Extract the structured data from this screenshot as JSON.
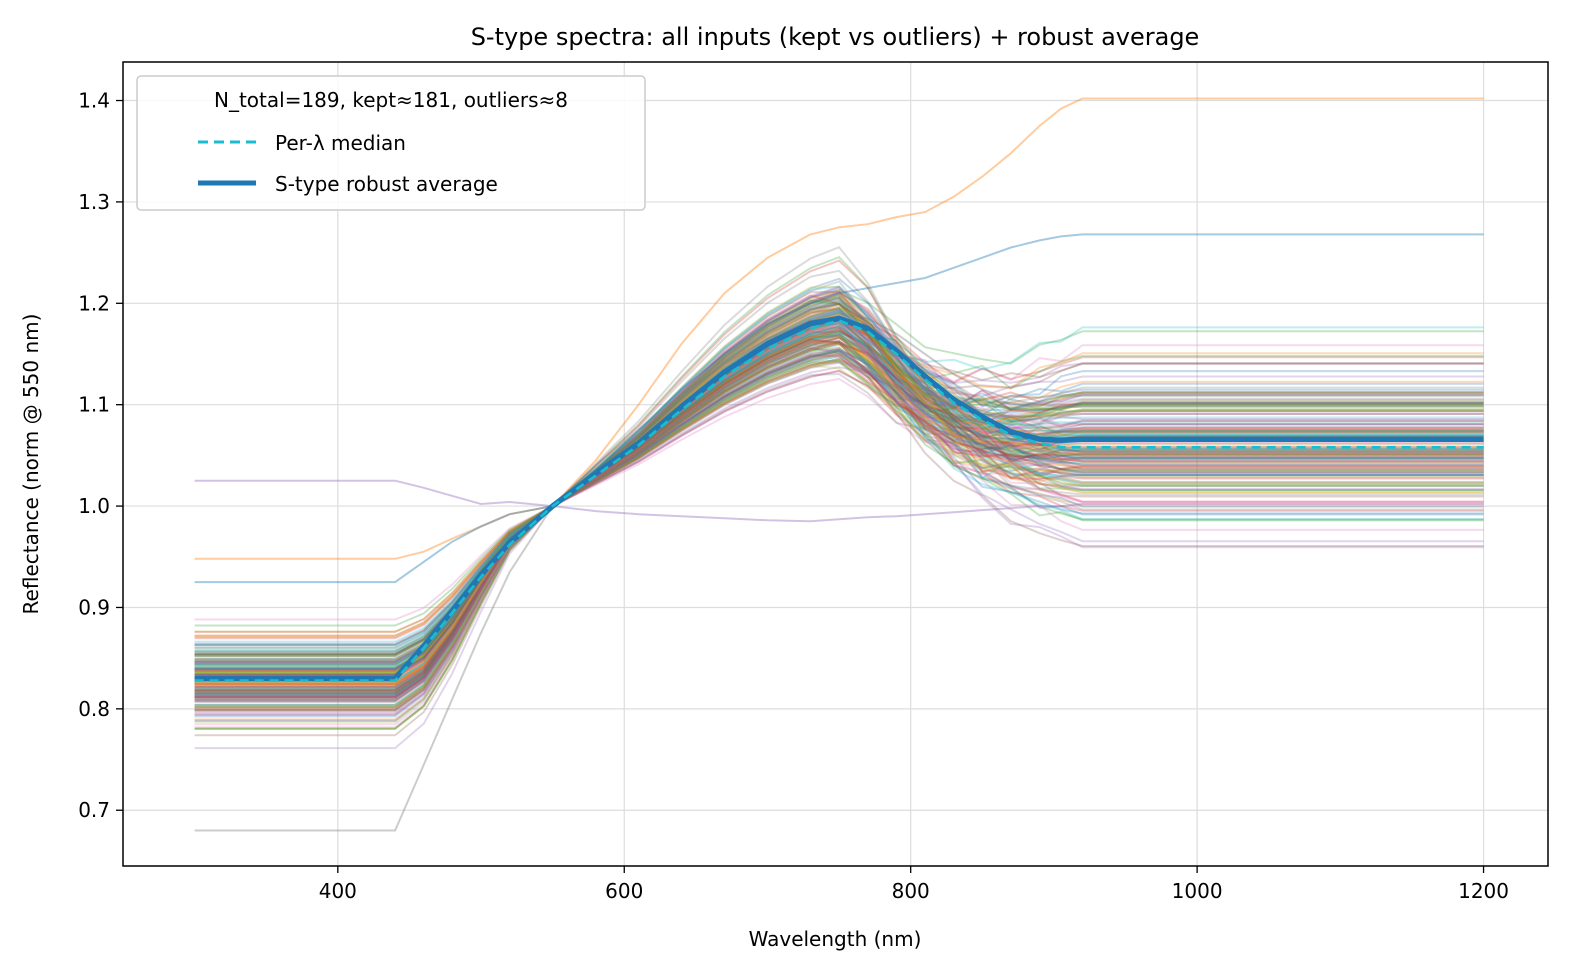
{
  "chart_data": {
    "type": "line",
    "title": "S-type spectra: all inputs (kept vs outliers) + robust average",
    "xlabel": "Wavelength (nm)",
    "ylabel": "Reflectance (norm @ 550 nm)",
    "xlim": [
      250,
      1245
    ],
    "ylim": [
      0.645,
      1.438
    ],
    "xticks": [
      400,
      600,
      800,
      1000,
      1200
    ],
    "xtick_labels": [
      "400",
      "600",
      "800",
      "1000",
      "1200"
    ],
    "yticks": [
      0.7,
      0.8,
      0.9,
      1.0,
      1.1,
      1.2,
      1.3,
      1.4
    ],
    "ytick_labels": [
      "0.7",
      "0.8",
      "0.9",
      "1.0",
      "1.1",
      "1.2",
      "1.3",
      "1.4"
    ],
    "grid": true,
    "legend": {
      "placement": "top-left",
      "title": "N_total=189, kept≈181, outliers≈8",
      "entries": [
        {
          "label": "Per-λ median",
          "color": "#17becf",
          "style": "dashed"
        },
        {
          "label": "S-type robust average",
          "color": "#1f77b4",
          "style": "solid-thick"
        }
      ]
    },
    "series": [
      {
        "name": "Per-λ median",
        "color": "#17becf",
        "x": [
          300,
          440,
          460,
          480,
          500,
          520,
          550,
          580,
          610,
          640,
          670,
          700,
          730,
          750,
          770,
          790,
          810,
          830,
          850,
          870,
          890,
          905,
          920,
          1200
        ],
        "y": [
          0.828,
          0.828,
          0.86,
          0.895,
          0.93,
          0.962,
          1.0,
          1.03,
          1.06,
          1.095,
          1.128,
          1.155,
          1.175,
          1.183,
          1.172,
          1.15,
          1.125,
          1.102,
          1.085,
          1.07,
          1.062,
          1.058,
          1.058,
          1.058
        ]
      },
      {
        "name": "S-type robust average",
        "color": "#1f77b4",
        "x": [
          300,
          440,
          460,
          480,
          500,
          520,
          550,
          580,
          610,
          640,
          670,
          700,
          730,
          750,
          770,
          790,
          810,
          830,
          850,
          870,
          890,
          905,
          920,
          1200
        ],
        "y": [
          0.83,
          0.83,
          0.862,
          0.897,
          0.932,
          0.964,
          1.0,
          1.032,
          1.062,
          1.098,
          1.132,
          1.16,
          1.18,
          1.185,
          1.175,
          1.153,
          1.128,
          1.105,
          1.088,
          1.073,
          1.066,
          1.065,
          1.066,
          1.066
        ]
      }
    ],
    "input_spectra": {
      "count": 189,
      "style": "thin translucent lines",
      "left_plateau_range": [
        0.68,
        0.948
      ],
      "right_plateau_range": [
        0.95,
        1.402
      ],
      "peak_range": [
        1.06,
        1.275
      ],
      "normalization_point": [
        550,
        1.0
      ],
      "plateau_edges_nm": [
        440,
        920
      ],
      "highlighted": [
        {
          "x": [
            300,
            440,
            460,
            480,
            500,
            520,
            550,
            580,
            610,
            640,
            670,
            700,
            730,
            750,
            770,
            790,
            810,
            830,
            850,
            870,
            890,
            905,
            920,
            1200
          ],
          "y": [
            0.948,
            0.948,
            0.955,
            0.968,
            0.98,
            0.992,
            1.0,
            1.045,
            1.1,
            1.16,
            1.21,
            1.245,
            1.268,
            1.275,
            1.278,
            1.285,
            1.29,
            1.305,
            1.325,
            1.348,
            1.375,
            1.392,
            1.402,
            1.402
          ]
        },
        {
          "x": [
            300,
            440,
            460,
            480,
            500,
            520,
            550,
            580,
            610,
            640,
            670,
            700,
            730,
            750,
            770,
            790,
            810,
            830,
            850,
            870,
            890,
            905,
            920,
            1200
          ],
          "y": [
            1.025,
            1.025,
            1.018,
            1.01,
            1.002,
            1.004,
            1.0,
            0.995,
            0.992,
            0.99,
            0.988,
            0.986,
            0.985,
            0.987,
            0.989,
            0.99,
            0.992,
            0.994,
            0.996,
            0.998,
            1.0,
            1.0,
            1.002,
            1.002
          ]
        },
        {
          "x": [
            300,
            440,
            460,
            480,
            500,
            520,
            550,
            580,
            610,
            640,
            670,
            700,
            730,
            750,
            770,
            790,
            810,
            830,
            850,
            870,
            890,
            905,
            920,
            1200
          ],
          "y": [
            0.68,
            0.68,
            0.745,
            0.81,
            0.875,
            0.935,
            1.0,
            1.04,
            1.075,
            1.11,
            1.14,
            1.165,
            1.182,
            1.19,
            1.185,
            1.17,
            1.15,
            1.13,
            1.115,
            1.105,
            1.1,
            1.098,
            1.098,
            1.098
          ]
        },
        {
          "x": [
            300,
            440,
            460,
            480,
            500,
            520,
            550,
            580,
            610,
            640,
            670,
            700,
            730,
            750,
            770,
            790,
            810,
            830,
            850,
            870,
            890,
            905,
            920,
            1200
          ],
          "y": [
            0.925,
            0.925,
            0.945,
            0.965,
            0.98,
            0.992,
            1.0,
            1.035,
            1.075,
            1.115,
            1.15,
            1.18,
            1.2,
            1.21,
            1.215,
            1.22,
            1.225,
            1.235,
            1.245,
            1.255,
            1.262,
            1.266,
            1.268,
            1.268
          ]
        }
      ]
    }
  }
}
